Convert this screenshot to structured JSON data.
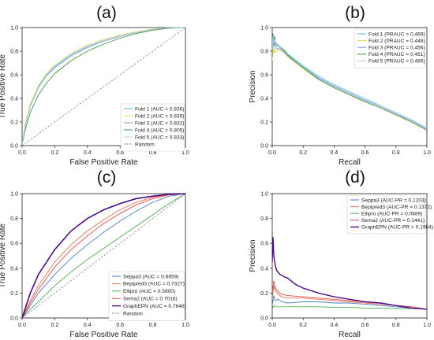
{
  "chart_data": [
    {
      "panel": "(a)",
      "type": "line",
      "xlabel": "False Positive Rate",
      "ylabel": "True Positive Rate",
      "xlim": [
        0,
        1
      ],
      "ylim": [
        0,
        1
      ],
      "xticks": [
        "0.0",
        "0.2",
        "0.4",
        "0.6",
        "0.8",
        "1.0"
      ],
      "yticks": [
        "0.0",
        "0.2",
        "0.4",
        "0.6",
        "0.8",
        "1.0"
      ],
      "legend_position": "bottom-right",
      "grid": false,
      "series": [
        {
          "name": "Fold 1 (AUC = 0.836)",
          "color": "#4fb8e8",
          "style": "solid",
          "x": [
            0,
            0.02,
            0.05,
            0.1,
            0.15,
            0.2,
            0.3,
            0.4,
            0.5,
            0.6,
            0.7,
            0.8,
            0.9,
            1.0
          ],
          "y": [
            0,
            0.18,
            0.34,
            0.5,
            0.6,
            0.67,
            0.77,
            0.84,
            0.89,
            0.93,
            0.96,
            0.985,
            0.996,
            1.0
          ]
        },
        {
          "name": "Fold 2 (AUC = 0.839)",
          "color": "#e8d84f",
          "style": "solid",
          "x": [
            0,
            0.02,
            0.05,
            0.1,
            0.15,
            0.2,
            0.3,
            0.4,
            0.5,
            0.6,
            0.7,
            0.8,
            0.9,
            1.0
          ],
          "y": [
            0,
            0.19,
            0.35,
            0.51,
            0.61,
            0.68,
            0.78,
            0.85,
            0.9,
            0.935,
            0.965,
            0.987,
            0.997,
            1.0
          ]
        },
        {
          "name": "Fold 3 (AUC = 0.832)",
          "color": "#8a8fd6",
          "style": "solid",
          "x": [
            0,
            0.02,
            0.05,
            0.1,
            0.15,
            0.2,
            0.3,
            0.4,
            0.5,
            0.6,
            0.7,
            0.8,
            0.9,
            1.0
          ],
          "y": [
            0,
            0.17,
            0.33,
            0.49,
            0.59,
            0.66,
            0.76,
            0.83,
            0.885,
            0.925,
            0.958,
            0.983,
            0.995,
            1.0
          ]
        },
        {
          "name": "Fold 4 (AUC = 0.805)",
          "color": "#3a9a3a",
          "style": "solid",
          "x": [
            0,
            0.02,
            0.05,
            0.1,
            0.15,
            0.2,
            0.3,
            0.4,
            0.5,
            0.6,
            0.7,
            0.8,
            0.9,
            1.0
          ],
          "y": [
            0,
            0.14,
            0.28,
            0.43,
            0.53,
            0.61,
            0.72,
            0.8,
            0.86,
            0.91,
            0.95,
            0.978,
            0.994,
            1.0
          ]
        },
        {
          "name": "Fold 5 (AUC = 0.833)",
          "color": "#a9d0f0",
          "style": "solid",
          "x": [
            0,
            0.02,
            0.05,
            0.1,
            0.15,
            0.2,
            0.3,
            0.4,
            0.5,
            0.6,
            0.7,
            0.8,
            0.9,
            1.0
          ],
          "y": [
            0,
            0.17,
            0.33,
            0.49,
            0.595,
            0.665,
            0.765,
            0.835,
            0.888,
            0.928,
            0.96,
            0.984,
            0.996,
            1.0
          ]
        },
        {
          "name": "Random",
          "color": "#777777",
          "style": "dashed",
          "x": [
            0,
            1
          ],
          "y": [
            0,
            1
          ]
        }
      ]
    },
    {
      "panel": "(b)",
      "type": "line",
      "xlabel": "Recall",
      "ylabel": "Precision",
      "xlim": [
        0,
        1
      ],
      "ylim": [
        0,
        1
      ],
      "xticks": [
        "0.0",
        "0.2",
        "0.4",
        "0.6",
        "0.8",
        "1.0"
      ],
      "yticks": [
        "0.0",
        "0.2",
        "0.4",
        "0.6",
        "0.8",
        "1.0"
      ],
      "legend_position": "top-right",
      "grid": false,
      "series": [
        {
          "name": "Fold 1 (PRAUC = 0.469)",
          "color": "#4fb8e8",
          "style": "solid",
          "x": [
            0.0,
            0.005,
            0.01,
            0.015,
            0.02,
            0.03,
            0.05,
            0.08,
            0.1,
            0.15,
            0.2,
            0.3,
            0.4,
            0.5,
            0.6,
            0.7,
            0.8,
            0.9,
            1.0
          ],
          "y": [
            0.8,
            0.92,
            0.86,
            0.9,
            0.85,
            0.84,
            0.83,
            0.8,
            0.77,
            0.72,
            0.67,
            0.58,
            0.51,
            0.45,
            0.39,
            0.34,
            0.28,
            0.22,
            0.15
          ]
        },
        {
          "name": "Fold 2 (PRAUC = 0.448)",
          "color": "#e8d84f",
          "style": "solid",
          "x": [
            0.0,
            0.005,
            0.01,
            0.015,
            0.02,
            0.03,
            0.05,
            0.08,
            0.1,
            0.15,
            0.2,
            0.3,
            0.4,
            0.5,
            0.6,
            0.7,
            0.8,
            0.9,
            1.0
          ],
          "y": [
            0.72,
            0.85,
            0.78,
            0.82,
            0.79,
            0.8,
            0.81,
            0.78,
            0.75,
            0.7,
            0.65,
            0.56,
            0.49,
            0.43,
            0.37,
            0.32,
            0.26,
            0.2,
            0.13
          ]
        },
        {
          "name": "Fold 3 (PRAUC = 0.456)",
          "color": "#8a8fd6",
          "style": "solid",
          "x": [
            0.0,
            0.005,
            0.01,
            0.015,
            0.02,
            0.03,
            0.05,
            0.08,
            0.1,
            0.15,
            0.2,
            0.3,
            0.4,
            0.5,
            0.6,
            0.7,
            0.8,
            0.9,
            1.0
          ],
          "y": [
            0.78,
            0.9,
            0.84,
            0.88,
            0.83,
            0.82,
            0.82,
            0.79,
            0.76,
            0.71,
            0.66,
            0.57,
            0.5,
            0.44,
            0.38,
            0.33,
            0.27,
            0.21,
            0.14
          ]
        },
        {
          "name": "Fold 4 (PRAUC = 0.451)",
          "color": "#3a9a3a",
          "style": "solid",
          "x": [
            0.0,
            0.005,
            0.01,
            0.015,
            0.02,
            0.03,
            0.05,
            0.08,
            0.1,
            0.15,
            0.2,
            0.3,
            0.4,
            0.5,
            0.6,
            0.7,
            0.8,
            0.9,
            1.0
          ],
          "y": [
            0.75,
            0.95,
            0.88,
            0.93,
            0.87,
            0.86,
            0.84,
            0.8,
            0.77,
            0.71,
            0.66,
            0.56,
            0.49,
            0.43,
            0.37,
            0.32,
            0.26,
            0.2,
            0.13
          ]
        },
        {
          "name": "Fold 5 (PRAUC = 0.465)",
          "color": "#a9d0f0",
          "style": "solid",
          "x": [
            0.0,
            0.005,
            0.01,
            0.015,
            0.02,
            0.03,
            0.05,
            0.08,
            0.1,
            0.15,
            0.2,
            0.3,
            0.4,
            0.5,
            0.6,
            0.7,
            0.8,
            0.9,
            1.0
          ],
          "y": [
            0.8,
            0.93,
            0.87,
            0.9,
            0.86,
            0.85,
            0.84,
            0.81,
            0.78,
            0.73,
            0.68,
            0.59,
            0.52,
            0.46,
            0.4,
            0.34,
            0.28,
            0.22,
            0.15
          ]
        }
      ]
    },
    {
      "panel": "(c)",
      "type": "line",
      "xlabel": "False Positive Rate",
      "ylabel": "True Positive Rate",
      "xlim": [
        0,
        1
      ],
      "ylim": [
        0,
        1
      ],
      "xticks": [
        "0.0",
        "0.2",
        "0.4",
        "0.6",
        "0.8",
        "1.0"
      ],
      "yticks": [
        "0.0",
        "0.2",
        "0.4",
        "0.6",
        "0.8",
        "1.0"
      ],
      "legend_position": "bottom-right",
      "grid": false,
      "series": [
        {
          "name": "Seppa3 (AUC = 0.6659)",
          "color": "#4a7ec4",
          "style": "solid",
          "x": [
            0,
            0.05,
            0.1,
            0.2,
            0.3,
            0.4,
            0.5,
            0.6,
            0.7,
            0.8,
            0.9,
            1.0
          ],
          "y": [
            0,
            0.1,
            0.2,
            0.35,
            0.48,
            0.59,
            0.69,
            0.78,
            0.86,
            0.93,
            0.98,
            1.0
          ]
        },
        {
          "name": "Bepipred3 (AUC = 0.7327)",
          "color": "#e8704a",
          "style": "solid",
          "x": [
            0,
            0.05,
            0.1,
            0.2,
            0.3,
            0.4,
            0.5,
            0.6,
            0.7,
            0.8,
            0.9,
            1.0
          ],
          "y": [
            0,
            0.14,
            0.26,
            0.45,
            0.59,
            0.7,
            0.79,
            0.87,
            0.93,
            0.97,
            0.99,
            1.0
          ]
        },
        {
          "name": "Ellipro (AUC = 0.5800)",
          "color": "#4caf50",
          "style": "solid",
          "x": [
            0,
            0.05,
            0.1,
            0.2,
            0.3,
            0.4,
            0.5,
            0.6,
            0.7,
            0.8,
            0.9,
            1.0
          ],
          "y": [
            0,
            0.07,
            0.13,
            0.26,
            0.37,
            0.47,
            0.56,
            0.65,
            0.74,
            0.83,
            0.92,
            1.0
          ]
        },
        {
          "name": "Sema2 (AUC = 0.7016)",
          "color": "#e84a4a",
          "style": "solid",
          "x": [
            0,
            0.05,
            0.1,
            0.2,
            0.3,
            0.4,
            0.5,
            0.6,
            0.7,
            0.8,
            0.9,
            1.0
          ],
          "y": [
            0,
            0.12,
            0.23,
            0.41,
            0.55,
            0.66,
            0.76,
            0.84,
            0.91,
            0.96,
            0.99,
            1.0
          ]
        },
        {
          "name": "GraphEPN (AUC = 0.7646)",
          "color": "#4b0a8c",
          "style": "solid",
          "width": 1.6,
          "x": [
            0,
            0.05,
            0.1,
            0.2,
            0.3,
            0.4,
            0.5,
            0.6,
            0.7,
            0.8,
            0.9,
            1.0
          ],
          "y": [
            0,
            0.2,
            0.35,
            0.55,
            0.7,
            0.8,
            0.87,
            0.92,
            0.96,
            0.98,
            0.995,
            1.0
          ]
        },
        {
          "name": "Random",
          "color": "#777777",
          "style": "dashed",
          "x": [
            0,
            1
          ],
          "y": [
            0,
            1
          ]
        }
      ]
    },
    {
      "panel": "(d)",
      "type": "line",
      "xlabel": "Recall",
      "ylabel": "Precision",
      "xlim": [
        0,
        1
      ],
      "ylim": [
        0,
        1
      ],
      "xticks": [
        "0.0",
        "0.2",
        "0.4",
        "0.6",
        "0.8",
        "1.0"
      ],
      "yticks": [
        "0.0",
        "0.2",
        "0.4",
        "0.6",
        "0.8",
        "1.0"
      ],
      "legend_position": "top-right",
      "grid": false,
      "series": [
        {
          "name": "Seppa3 (AUC-PR = 0.1203)",
          "color": "#4a7ec4",
          "style": "solid",
          "x": [
            0.0,
            0.01,
            0.02,
            0.04,
            0.06,
            0.1,
            0.2,
            0.3,
            0.4,
            0.5,
            0.6,
            0.7,
            0.8,
            0.9,
            1.0
          ],
          "y": [
            0.1,
            0.18,
            0.14,
            0.15,
            0.13,
            0.12,
            0.13,
            0.13,
            0.12,
            0.12,
            0.11,
            0.1,
            0.09,
            0.08,
            0.07
          ]
        },
        {
          "name": "Bepipred3 (AUC-PR = 0.1372)",
          "color": "#e8704a",
          "style": "solid",
          "x": [
            0.0,
            0.01,
            0.02,
            0.04,
            0.06,
            0.1,
            0.2,
            0.3,
            0.4,
            0.5,
            0.6,
            0.7,
            0.8,
            0.9,
            1.0
          ],
          "y": [
            0.15,
            0.26,
            0.22,
            0.19,
            0.17,
            0.16,
            0.16,
            0.15,
            0.14,
            0.13,
            0.12,
            0.11,
            0.1,
            0.09,
            0.07
          ]
        },
        {
          "name": "Ellipro (AUC-PR = 0.0889)",
          "color": "#4caf50",
          "style": "solid",
          "x": [
            0.0,
            0.01,
            0.02,
            0.04,
            0.06,
            0.1,
            0.2,
            0.3,
            0.4,
            0.5,
            0.6,
            0.7,
            0.8,
            0.9,
            1.0
          ],
          "y": [
            0.07,
            0.1,
            0.09,
            0.09,
            0.09,
            0.09,
            0.09,
            0.09,
            0.085,
            0.085,
            0.08,
            0.08,
            0.075,
            0.075,
            0.07
          ]
        },
        {
          "name": "Sema2 (AUC-PR = 0.1441)",
          "color": "#e84a4a",
          "style": "solid",
          "x": [
            0.0,
            0.01,
            0.02,
            0.04,
            0.06,
            0.1,
            0.2,
            0.3,
            0.4,
            0.5,
            0.6,
            0.7,
            0.8,
            0.9,
            1.0
          ],
          "y": [
            0.2,
            0.3,
            0.24,
            0.21,
            0.19,
            0.18,
            0.17,
            0.16,
            0.15,
            0.14,
            0.13,
            0.12,
            0.1,
            0.09,
            0.07
          ]
        },
        {
          "name": "GraphEPN (AUC-PR = 0.1964)",
          "color": "#4b0a8c",
          "style": "solid",
          "width": 1.4,
          "x": [
            0.0,
            0.005,
            0.01,
            0.02,
            0.03,
            0.05,
            0.08,
            0.1,
            0.15,
            0.2,
            0.3,
            0.4,
            0.5,
            0.6,
            0.7,
            0.8,
            0.9,
            1.0
          ],
          "y": [
            0.45,
            0.65,
            0.5,
            0.42,
            0.38,
            0.35,
            0.33,
            0.32,
            0.27,
            0.24,
            0.2,
            0.17,
            0.15,
            0.13,
            0.12,
            0.1,
            0.08,
            0.07
          ]
        }
      ]
    }
  ]
}
